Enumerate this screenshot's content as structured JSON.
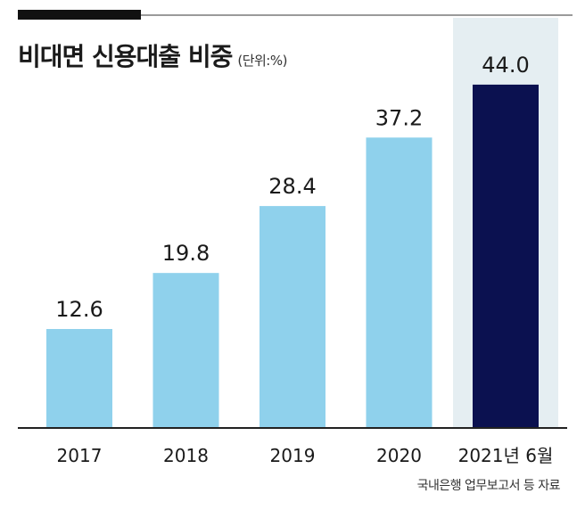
{
  "chart_data": {
    "type": "bar",
    "title": "비대면 신용대출 비중",
    "unit": "(단위:%)",
    "categories": [
      "2017",
      "2018",
      "2019",
      "2020",
      "2021년 6월"
    ],
    "values": [
      12.6,
      19.8,
      28.4,
      37.2,
      44.0
    ],
    "value_labels": [
      "12.6",
      "19.8",
      "28.4",
      "37.2",
      "44.0"
    ],
    "highlight_index": 4,
    "ylim": [
      0,
      48
    ],
    "source": "국내은행 업무보고서 등 자료",
    "colors": {
      "bar": "#8fd1ec",
      "highlight_bar": "#0b1150",
      "highlight_bg": "#e5eef2",
      "axis": "#222222",
      "text": "#1a1a1a"
    }
  }
}
